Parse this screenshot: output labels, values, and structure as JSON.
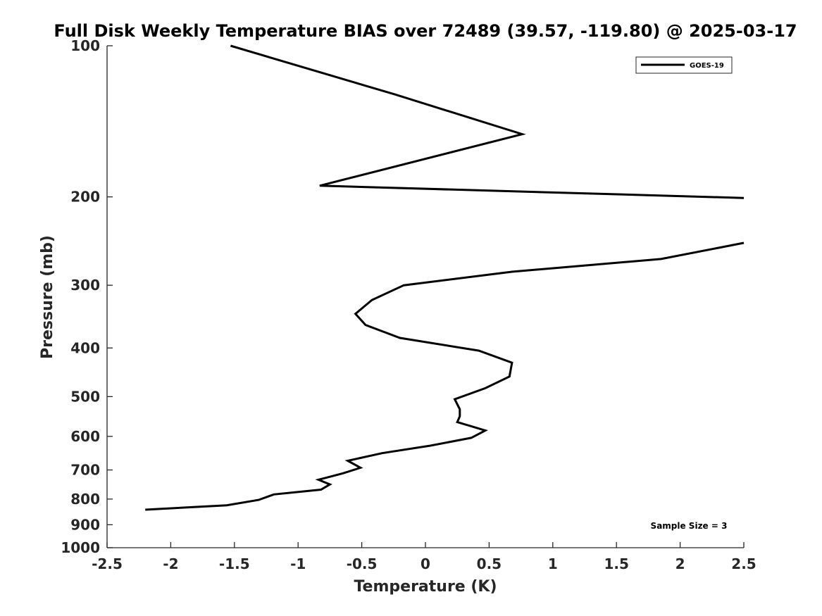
{
  "chart_data": {
    "type": "line",
    "title": "Full Disk Weekly Temperature BIAS over 72489 (39.57, -119.80) @ 2025-03-17",
    "xlabel": "Temperature (K)",
    "ylabel": "Pressure (mb)",
    "xlim": [
      -2.5,
      2.5
    ],
    "ylim": [
      100,
      1000
    ],
    "y_scale": "log",
    "y_reversed": true,
    "x_ticks": [
      "-2.5",
      "-2",
      "-1.5",
      "-1",
      "-0.5",
      "0",
      "0.5",
      "1",
      "1.5",
      "2",
      "2.5"
    ],
    "y_ticks": [
      "100",
      "200",
      "300",
      "400",
      "500",
      "600",
      "700",
      "800",
      "900",
      "1000"
    ],
    "grid": false,
    "legend_position": "top-right",
    "annotation": "Sample Size = 3",
    "series": [
      {
        "name": "GOES-19",
        "color": "#000000",
        "segments": [
          [
            {
              "x": -1.53,
              "y": 100
            },
            {
              "x": -0.24,
              "y": 125
            },
            {
              "x": 0.76,
              "y": 150
            },
            {
              "x": -0.83,
              "y": 190
            },
            {
              "x": 2.5,
              "y": 201
            }
          ],
          [
            {
              "x": 2.5,
              "y": 247
            },
            {
              "x": 1.85,
              "y": 266
            },
            {
              "x": 0.68,
              "y": 282
            },
            {
              "x": -0.17,
              "y": 300
            },
            {
              "x": -0.42,
              "y": 321
            },
            {
              "x": -0.55,
              "y": 342
            },
            {
              "x": -0.47,
              "y": 360
            },
            {
              "x": -0.2,
              "y": 382
            },
            {
              "x": 0.42,
              "y": 405
            },
            {
              "x": 0.68,
              "y": 428
            },
            {
              "x": 0.66,
              "y": 456
            },
            {
              "x": 0.47,
              "y": 481
            },
            {
              "x": 0.23,
              "y": 506
            },
            {
              "x": 0.27,
              "y": 530
            },
            {
              "x": 0.27,
              "y": 547
            },
            {
              "x": 0.25,
              "y": 562
            },
            {
              "x": 0.47,
              "y": 584
            },
            {
              "x": 0.36,
              "y": 604
            },
            {
              "x": 0.04,
              "y": 626
            },
            {
              "x": -0.34,
              "y": 648
            },
            {
              "x": -0.61,
              "y": 671
            },
            {
              "x": -0.51,
              "y": 693
            },
            {
              "x": -0.65,
              "y": 711
            },
            {
              "x": -0.84,
              "y": 732
            },
            {
              "x": -0.75,
              "y": 748
            },
            {
              "x": -0.82,
              "y": 766
            },
            {
              "x": -1.19,
              "y": 783
            },
            {
              "x": -1.31,
              "y": 803
            },
            {
              "x": -1.56,
              "y": 823
            },
            {
              "x": -2.2,
              "y": 840
            }
          ]
        ]
      }
    ]
  }
}
